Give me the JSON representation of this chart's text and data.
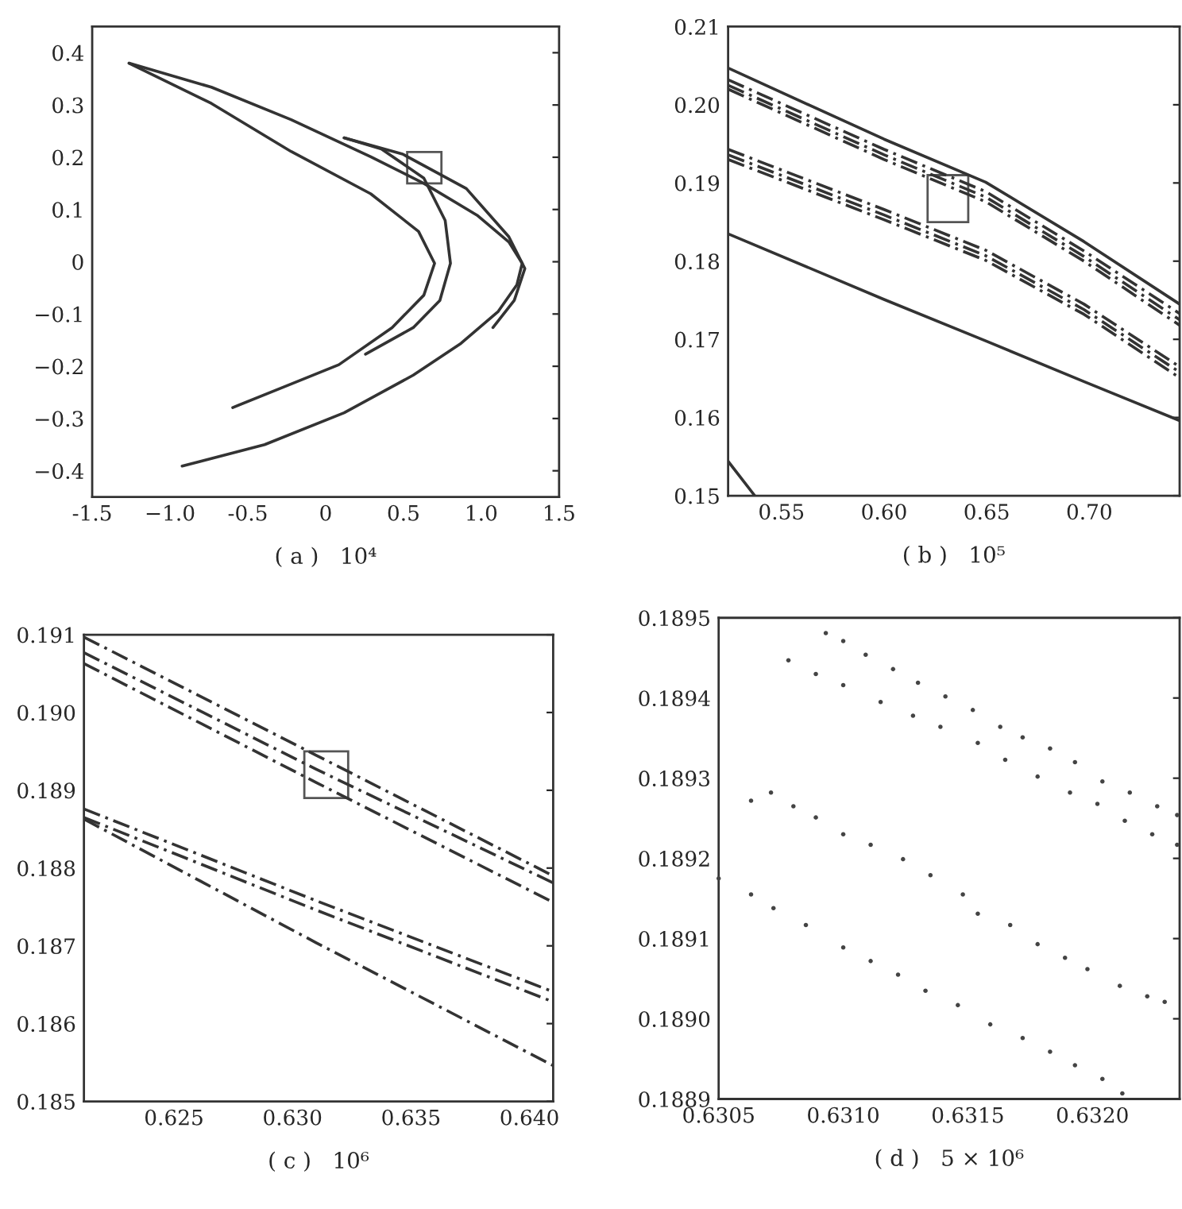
{
  "chart_data": [
    {
      "type": "line",
      "xlabel": "( a )   10⁴",
      "xlim": [
        -1.5,
        1.5
      ],
      "ylim": [
        -0.45,
        0.45
      ],
      "xticks": [
        -1.5,
        {
          "value": -1.0,
          "label": "−1.0"
        },
        -0.5,
        0,
        0.5,
        {
          "value": 1.0,
          "label": "1.0"
        },
        1.5
      ],
      "yticks": [
        {
          "value": -0.4,
          "label": "−0.4"
        },
        {
          "value": -0.3,
          "label": "−0.3"
        },
        {
          "value": -0.2,
          "label": "−0.2"
        },
        {
          "value": -0.1,
          "label": "−0.1"
        },
        0,
        0.1,
        0.2,
        0.3,
        0.4
      ],
      "series": [
        {
          "color": "#333333",
          "line_style": "solid",
          "x": [
            -1.263,
            -0.734,
            -0.222,
            0.29,
            0.631,
            0.973,
            1.177,
            1.263,
            1.229,
            1.109,
            0.87,
            0.563,
            0.119,
            -0.392,
            -0.922
          ],
          "values": [
            0.38,
            0.334,
            0.272,
            0.201,
            0.15,
            0.089,
            0.038,
            -0.003,
            -0.044,
            -0.095,
            -0.156,
            -0.217,
            -0.289,
            -0.35,
            -0.391
          ]
        },
        {
          "color": "#333333",
          "line_style": "solid",
          "x": [
            -1.263,
            -0.734,
            -0.222,
            0.29,
            0.597,
            0.7,
            0.631,
            0.427,
            0.085,
            -0.256,
            -0.597
          ],
          "values": [
            0.38,
            0.303,
            0.211,
            0.13,
            0.058,
            -0.003,
            -0.064,
            -0.126,
            -0.197,
            -0.238,
            -0.279
          ]
        },
        {
          "color": "#333333",
          "line_style": "solid",
          "x": [
            0.119,
            0.495,
            0.904,
            1.177,
            1.28,
            1.212,
            1.075
          ],
          "values": [
            0.237,
            0.206,
            0.14,
            0.048,
            -0.013,
            -0.074,
            -0.126
          ]
        },
        {
          "color": "#333333",
          "line_style": "solid",
          "x": [
            0.119,
            0.358,
            0.631,
            0.768,
            0.802,
            0.734,
            0.563,
            0.256
          ],
          "values": [
            0.237,
            0.216,
            0.16,
            0.079,
            -0.003,
            -0.074,
            -0.126,
            -0.177
          ]
        }
      ]
    },
    {
      "type": "line",
      "xlabel": "( b )   10⁵",
      "xlim": [
        0.524,
        0.744
      ],
      "ylim": [
        0.15,
        0.21
      ],
      "xticks": [
        0.55,
        {
          "value": 0.6,
          "label": "0.60"
        },
        0.65,
        {
          "value": 0.7,
          "label": "0.70"
        }
      ],
      "yticks": [
        0.15,
        0.16,
        0.17,
        0.18,
        0.19,
        {
          "value": 0.2,
          "label": "0.20"
        },
        0.21
      ],
      "series": [
        {
          "color": "#333333",
          "line_style": "solid",
          "x": [
            0.524,
            0.6,
            0.6495,
            0.6974,
            0.744
          ],
          "values": [
            0.2047,
            0.1956,
            0.1901,
            0.1825,
            0.1745
          ]
        },
        {
          "color": "#333333",
          "line_style": "dashed",
          "x": [
            0.524,
            0.6,
            0.6495,
            0.6974,
            0.744
          ],
          "values": [
            0.2032,
            0.1943,
            0.1889,
            0.1813,
            0.1733
          ]
        },
        {
          "color": "#333333",
          "line_style": "dashed",
          "x": [
            0.524,
            0.6,
            0.6495,
            0.6974,
            0.744
          ],
          "values": [
            0.2025,
            0.1936,
            0.1882,
            0.1806,
            0.1725
          ]
        },
        {
          "color": "#333333",
          "line_style": "dashed",
          "x": [
            0.524,
            0.6,
            0.6495,
            0.6974,
            0.744
          ],
          "values": [
            0.202,
            0.193,
            0.1876,
            0.18,
            0.1718
          ]
        },
        {
          "color": "#333333",
          "line_style": "dashed",
          "x": [
            0.524,
            0.6,
            0.6495,
            0.6974,
            0.744
          ],
          "values": [
            0.1943,
            0.1866,
            0.1814,
            0.1745,
            0.1665
          ]
        },
        {
          "color": "#333333",
          "line_style": "dashed",
          "x": [
            0.524,
            0.6,
            0.6495,
            0.6974,
            0.744
          ],
          "values": [
            0.1936,
            0.1859,
            0.1807,
            0.1738,
            0.1658
          ]
        },
        {
          "color": "#333333",
          "line_style": "dashed",
          "x": [
            0.524,
            0.6,
            0.6495,
            0.6974,
            0.744
          ],
          "values": [
            0.193,
            0.1853,
            0.1801,
            0.1732,
            0.1651
          ]
        },
        {
          "color": "#333333",
          "line_style": "solid",
          "x": [
            0.524,
            0.6,
            0.6495,
            0.6974,
            0.744
          ],
          "values": [
            0.1835,
            0.1751,
            0.1698,
            0.1646,
            0.1596
          ]
        },
        {
          "color": "#333333",
          "line_style": "solid",
          "x": [
            0.524,
            0.537
          ],
          "values": [
            0.1544,
            0.15
          ]
        }
      ]
    },
    {
      "type": "line",
      "xlabel": "( c )   10⁶",
      "xlim": [
        0.6212,
        0.641
      ],
      "ylim": [
        0.185,
        0.191
      ],
      "xticks": [
        0.625,
        {
          "value": 0.63,
          "label": "0.630"
        },
        0.635,
        {
          "value": 0.64,
          "label": "0.640"
        }
      ],
      "yticks": [
        0.185,
        0.186,
        0.187,
        0.188,
        0.189,
        {
          "value": 0.19,
          "label": "0.190"
        },
        0.191
      ],
      "series": [
        {
          "color": "#333333",
          "line_style": "dashed",
          "x": [
            0.6212,
            0.631,
            0.641
          ],
          "values": [
            0.19097,
            0.18945,
            0.1879
          ]
        },
        {
          "color": "#333333",
          "line_style": "dashed",
          "x": [
            0.6212,
            0.631,
            0.641
          ],
          "values": [
            0.19077,
            0.18927,
            0.18781
          ]
        },
        {
          "color": "#333333",
          "line_style": "dashed",
          "x": [
            0.6212,
            0.631,
            0.641
          ],
          "values": [
            0.19063,
            0.1891,
            0.18756
          ]
        },
        {
          "color": "#333333",
          "line_style": "dashed",
          "x": [
            0.6212,
            0.631,
            0.641
          ],
          "values": [
            0.18876,
            0.18758,
            0.18641
          ]
        },
        {
          "color": "#333333",
          "line_style": "dashed",
          "x": [
            0.6212,
            0.631,
            0.641
          ],
          "values": [
            0.18865,
            0.18746,
            0.18628
          ]
        },
        {
          "color": "#333333",
          "line_style": "dashed",
          "x": [
            0.6212,
            0.631,
            0.641
          ],
          "values": [
            0.18863,
            0.18704,
            0.18546
          ]
        }
      ]
    },
    {
      "type": "scatter",
      "marker": "circle",
      "xlabel": "( d )   5 × 10⁶",
      "xlim": [
        0.6305,
        0.63235
      ],
      "ylim": [
        0.1889,
        0.1895
      ],
      "xticks": [
        0.6305,
        {
          "value": 0.631,
          "label": "0.6310"
        },
        0.6315,
        {
          "value": 0.632,
          "label": "0.6320"
        }
      ],
      "yticks": [
        0.1889,
        {
          "value": 0.189,
          "label": "0.1890"
        },
        0.1891,
        0.1892,
        0.1893,
        0.1894,
        0.1895
      ],
      "series": [
        {
          "color": "#444444",
          "x": [
            0.63093,
            0.631,
            0.63109,
            0.6312,
            0.6313,
            0.63141,
            0.63152,
            0.63163,
            0.63172,
            0.63183,
            0.63193,
            0.63204,
            0.63215,
            0.63226,
            0.63234
          ],
          "values": [
            0.189481,
            0.189471,
            0.189454,
            0.189436,
            0.189419,
            0.189402,
            0.189385,
            0.189364,
            0.189351,
            0.189337,
            0.18932,
            0.189296,
            0.189282,
            0.189265,
            0.189254
          ]
        },
        {
          "color": "#444444",
          "x": [
            0.63078,
            0.63089,
            0.631,
            0.63115,
            0.63128,
            0.63139,
            0.63154,
            0.63165,
            0.63178,
            0.63191,
            0.63202,
            0.63213,
            0.63224,
            0.63234
          ],
          "values": [
            0.189447,
            0.18943,
            0.189416,
            0.189395,
            0.189378,
            0.189364,
            0.189344,
            0.189323,
            0.189302,
            0.189282,
            0.189268,
            0.189247,
            0.18923,
            0.189217
          ]
        },
        {
          "color": "#444444",
          "x": [
            0.63063,
            0.63071,
            0.6308,
            0.63089,
            0.631,
            0.63111,
            0.63124,
            0.63135,
            0.63148,
            0.63154,
            0.63167,
            0.63178,
            0.63189,
            0.63198,
            0.63211,
            0.63222,
            0.63229
          ],
          "values": [
            0.189272,
            0.189282,
            0.189265,
            0.189251,
            0.18923,
            0.189217,
            0.189199,
            0.189179,
            0.189155,
            0.189131,
            0.189117,
            0.189093,
            0.189076,
            0.189062,
            0.189041,
            0.189028,
            0.189021
          ]
        },
        {
          "color": "#444444",
          "x": [
            0.6305,
            0.63063,
            0.63072,
            0.63085,
            0.631,
            0.63111,
            0.63122,
            0.63133,
            0.63146,
            0.63159,
            0.63172,
            0.63183,
            0.63193,
            0.63204,
            0.63212
          ],
          "values": [
            0.189175,
            0.189155,
            0.189138,
            0.189117,
            0.189089,
            0.189072,
            0.189055,
            0.189035,
            0.189017,
            0.188993,
            0.188976,
            0.188959,
            0.188942,
            0.188925,
            0.188907
          ]
        }
      ]
    }
  ]
}
